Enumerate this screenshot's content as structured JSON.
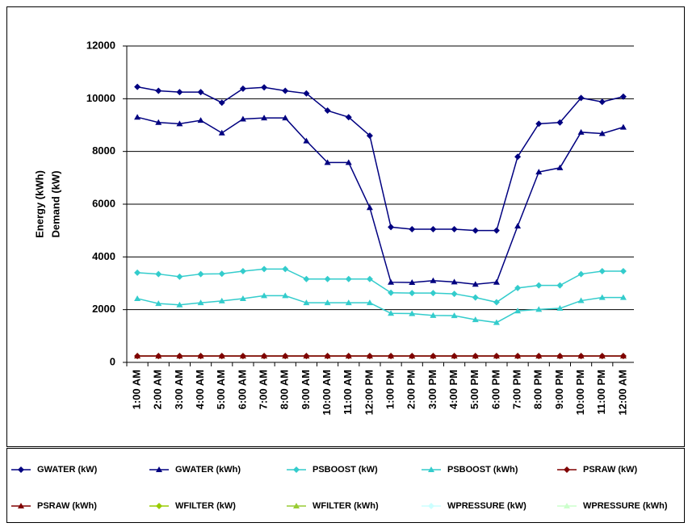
{
  "chart_data": {
    "type": "line",
    "y_label_lines": [
      "Energy (kWh)",
      "Demand (kW)"
    ],
    "categories": [
      "1:00 AM",
      "2:00 AM",
      "3:00 AM",
      "4:00 AM",
      "5:00 AM",
      "6:00 AM",
      "7:00 AM",
      "8:00 AM",
      "9:00 AM",
      "10:00 AM",
      "11:00 AM",
      "12:00 PM",
      "1:00 PM",
      "2:00 PM",
      "3:00 PM",
      "4:00 PM",
      "5:00 PM",
      "6:00 PM",
      "7:00 PM",
      "8:00 PM",
      "9:00 PM",
      "10:00 PM",
      "11:00 PM",
      "12:00 AM"
    ],
    "ylim": [
      0,
      12000
    ],
    "yticks": [
      0,
      2000,
      4000,
      6000,
      8000,
      10000,
      12000
    ],
    "grid": true,
    "legend": "bottom",
    "series": [
      {
        "name": "GWATER (kW)",
        "color": "#000080",
        "marker": "diamond",
        "values": [
          10450,
          10300,
          10250,
          10250,
          9850,
          10380,
          10430,
          10300,
          10200,
          9550,
          9300,
          8600,
          5130,
          5050,
          5050,
          5050,
          5000,
          5000,
          7800,
          9050,
          9100,
          10030,
          9880,
          10080
        ]
      },
      {
        "name": "GWATER (kWh)",
        "color": "#000080",
        "marker": "triangle",
        "values": [
          9300,
          9100,
          9050,
          9180,
          8700,
          9230,
          9270,
          9270,
          8400,
          7580,
          7580,
          5870,
          3040,
          3030,
          3100,
          3050,
          2960,
          3040,
          5170,
          7220,
          7380,
          8730,
          8680,
          8920
        ]
      },
      {
        "name": "PSBOOST (kW)",
        "color": "#33cccc",
        "marker": "diamond",
        "values": [
          3400,
          3350,
          3250,
          3350,
          3360,
          3460,
          3540,
          3540,
          3160,
          3160,
          3160,
          3160,
          2640,
          2630,
          2630,
          2600,
          2460,
          2280,
          2820,
          2920,
          2920,
          3350,
          3460,
          3460
        ]
      },
      {
        "name": "PSBOOST (kWh)",
        "color": "#33cccc",
        "marker": "triangle",
        "values": [
          2420,
          2230,
          2180,
          2260,
          2330,
          2420,
          2530,
          2530,
          2260,
          2260,
          2260,
          2260,
          1860,
          1850,
          1780,
          1770,
          1620,
          1510,
          1950,
          2010,
          2050,
          2340,
          2460,
          2460
        ]
      },
      {
        "name": "PSRAW (kW)",
        "color": "#800000",
        "marker": "diamond",
        "values": [
          240,
          240,
          240,
          240,
          240,
          240,
          240,
          240,
          240,
          240,
          240,
          240,
          240,
          240,
          240,
          240,
          240,
          240,
          240,
          240,
          240,
          240,
          240,
          240
        ]
      },
      {
        "name": "PSRAW (kWh)",
        "color": "#800000",
        "marker": "triangle",
        "values": [
          240,
          240,
          240,
          240,
          240,
          240,
          240,
          240,
          240,
          240,
          240,
          240,
          240,
          240,
          240,
          240,
          240,
          240,
          240,
          240,
          240,
          240,
          240,
          240
        ]
      },
      {
        "name": "WPRESSURE (kW)",
        "color": "#ccffff",
        "marker": "diamond",
        "values": [
          240,
          240,
          240,
          240,
          240,
          240,
          240,
          240,
          240,
          240,
          240,
          240,
          240,
          240,
          240,
          240,
          240,
          240,
          240,
          240,
          240,
          240,
          240,
          240
        ]
      },
      {
        "name": "WPRESSURE (kWh)",
        "color": "#ccffcc",
        "marker": "triangle",
        "values": [
          240,
          240,
          240,
          240,
          240,
          240,
          240,
          240,
          240,
          240,
          240,
          240,
          240,
          240,
          240,
          240,
          240,
          240,
          240,
          240,
          240,
          240,
          240,
          240
        ]
      },
      {
        "name": "WFILTER (kW)",
        "color": "#99cc00",
        "marker": "diamond",
        "values": [
          240,
          240,
          240,
          240,
          240,
          240,
          240,
          240,
          240,
          240,
          240,
          240,
          240,
          240,
          240,
          240,
          240,
          240,
          240,
          240,
          240,
          240,
          240,
          240
        ]
      },
      {
        "name": "WFILTER (kWh)",
        "color": "#99cc33",
        "marker": "triangle",
        "values": [
          240,
          240,
          240,
          240,
          240,
          240,
          240,
          240,
          240,
          240,
          240,
          240,
          240,
          240,
          240,
          240,
          240,
          240,
          240,
          240,
          240,
          240,
          240,
          240
        ]
      }
    ]
  }
}
